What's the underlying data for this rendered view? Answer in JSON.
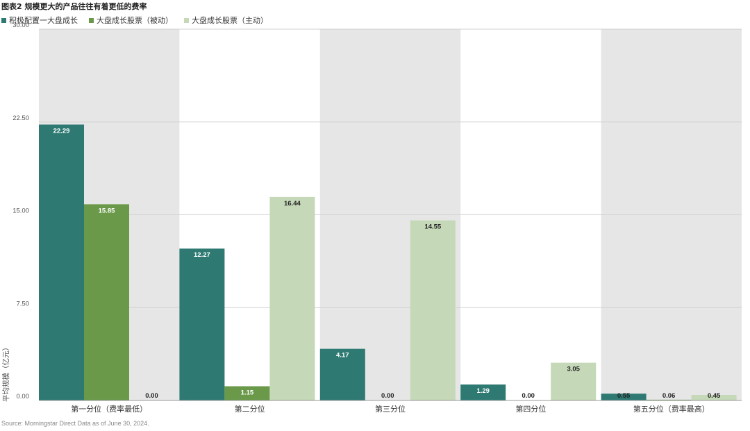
{
  "title": "图表2 规模更大的产品往往有着更低的费率",
  "source": "Source: Morningstar Direct  Data as of June 30, 2024.",
  "colors": {
    "band": "#e6e6e6",
    "grid": "#d0d0d0"
  },
  "chart_data": {
    "type": "bar",
    "categories": [
      "第一分位（费率最低）",
      "第二分位",
      "第三分位",
      "第四分位",
      "第五分位（费率最高）"
    ],
    "series": [
      {
        "name": "积极配置一大盘成长",
        "color": "#2e7a73",
        "values": [
          22.29,
          12.27,
          4.17,
          1.29,
          0.55
        ]
      },
      {
        "name": "大盘成长股票（被动）",
        "color": "#6a994a",
        "values": [
          15.85,
          1.15,
          0.0,
          0.0,
          0.06
        ]
      },
      {
        "name": "大盘成长股票（主动）",
        "color": "#c5d8b8",
        "values": [
          0.0,
          16.44,
          14.55,
          3.05,
          0.45
        ]
      }
    ],
    "data_labels": [
      [
        "22.29",
        "12.27",
        "4.17",
        "1.29",
        "0.55"
      ],
      [
        "15.85",
        "1.15",
        "0.00",
        "0.00",
        "0.06"
      ],
      [
        "0.00",
        "16.44",
        "14.55",
        "3.05",
        "0.45"
      ]
    ],
    "ylabel": "平均规模（亿元）",
    "ylim": [
      0,
      30
    ],
    "yticks": [
      "0.00",
      "7.50",
      "15.00",
      "22.50",
      "30.00"
    ],
    "grid": true,
    "alternating_bands": true,
    "legend_position": "top-left"
  }
}
